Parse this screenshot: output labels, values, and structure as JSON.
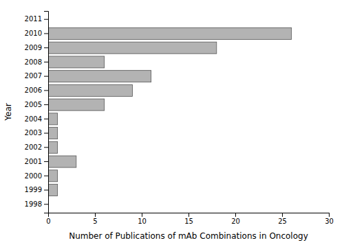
{
  "chart_data": {
    "type": "bar",
    "orientation": "horizontal",
    "categories": [
      "1998",
      "1999",
      "2000",
      "2001",
      "2002",
      "2003",
      "2004",
      "2005",
      "2006",
      "2007",
      "2008",
      "2009",
      "2010",
      "2011"
    ],
    "values": [
      0,
      1,
      1,
      3,
      1,
      1,
      1,
      6,
      9,
      11,
      6,
      18,
      26,
      0
    ],
    "color": "#b3b3b3",
    "xlabel": "Number of Publications of mAb Combinations in Oncology",
    "ylabel": "Year",
    "xlim": [
      0,
      30
    ],
    "xticks": [
      0,
      5,
      10,
      15,
      20,
      25,
      30
    ]
  }
}
